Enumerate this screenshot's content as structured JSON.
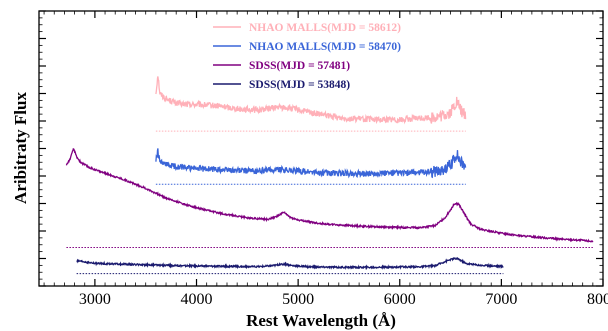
{
  "chart_data": {
    "type": "line",
    "title": "",
    "xlabel": "Rest Wavelength (Å)",
    "ylabel": "Aribitraty Flux",
    "xlim": [
      2450,
      8000
    ],
    "ylim": [
      0,
      1
    ],
    "x_ticks": [
      3000,
      4000,
      5000,
      6000,
      7000,
      8000
    ],
    "x_tick_labels": [
      "3000",
      "4000",
      "5000",
      "6000",
      "7000",
      "8000"
    ],
    "grid": false,
    "legend_position": "top-center",
    "series": [
      {
        "name": "NHAO MALLS(MJD = 58612)",
        "color": "#ffb0b8",
        "x_range": [
          3600,
          6650
        ],
        "baseline": 0.563,
        "points": [
          [
            3600,
            0.7
          ],
          [
            3620,
            0.77
          ],
          [
            3640,
            0.7
          ],
          [
            3700,
            0.68
          ],
          [
            3800,
            0.665
          ],
          [
            3900,
            0.66
          ],
          [
            4000,
            0.66
          ],
          [
            4200,
            0.655
          ],
          [
            4400,
            0.645
          ],
          [
            4600,
            0.64
          ],
          [
            4800,
            0.65
          ],
          [
            4900,
            0.648
          ],
          [
            5000,
            0.64
          ],
          [
            5200,
            0.625
          ],
          [
            5400,
            0.612
          ],
          [
            5600,
            0.608
          ],
          [
            5800,
            0.605
          ],
          [
            6000,
            0.605
          ],
          [
            6200,
            0.61
          ],
          [
            6400,
            0.615
          ],
          [
            6500,
            0.63
          ],
          [
            6560,
            0.67
          ],
          [
            6600,
            0.64
          ],
          [
            6650,
            0.62
          ]
        ]
      },
      {
        "name": "NHAO MALLS(MJD = 58470)",
        "color": "#3a65d8",
        "x_range": [
          3600,
          6650
        ],
        "baseline": 0.37,
        "points": [
          [
            3600,
            0.455
          ],
          [
            3620,
            0.49
          ],
          [
            3640,
            0.45
          ],
          [
            3700,
            0.44
          ],
          [
            3800,
            0.435
          ],
          [
            3900,
            0.43
          ],
          [
            4000,
            0.428
          ],
          [
            4200,
            0.424
          ],
          [
            4400,
            0.42
          ],
          [
            4600,
            0.418
          ],
          [
            4800,
            0.425
          ],
          [
            4900,
            0.422
          ],
          [
            5000,
            0.418
          ],
          [
            5200,
            0.412
          ],
          [
            5400,
            0.41
          ],
          [
            5600,
            0.408
          ],
          [
            5800,
            0.41
          ],
          [
            6000,
            0.41
          ],
          [
            6200,
            0.413
          ],
          [
            6400,
            0.42
          ],
          [
            6500,
            0.44
          ],
          [
            6560,
            0.48
          ],
          [
            6600,
            0.45
          ],
          [
            6650,
            0.44
          ]
        ]
      },
      {
        "name": "SDSS(MJD = 57481)",
        "color": "#800080",
        "x_range": [
          2720,
          7900
        ],
        "baseline": 0.14,
        "points": [
          [
            2720,
            0.44
          ],
          [
            2760,
            0.465
          ],
          [
            2790,
            0.5
          ],
          [
            2820,
            0.47
          ],
          [
            2860,
            0.45
          ],
          [
            2950,
            0.43
          ],
          [
            3100,
            0.41
          ],
          [
            3300,
            0.385
          ],
          [
            3500,
            0.355
          ],
          [
            3700,
            0.32
          ],
          [
            3900,
            0.295
          ],
          [
            4100,
            0.275
          ],
          [
            4300,
            0.26
          ],
          [
            4500,
            0.248
          ],
          [
            4700,
            0.242
          ],
          [
            4800,
            0.255
          ],
          [
            4860,
            0.268
          ],
          [
            4920,
            0.25
          ],
          [
            5000,
            0.24
          ],
          [
            5200,
            0.228
          ],
          [
            5400,
            0.222
          ],
          [
            5600,
            0.218
          ],
          [
            5800,
            0.215
          ],
          [
            6000,
            0.213
          ],
          [
            6200,
            0.212
          ],
          [
            6350,
            0.22
          ],
          [
            6450,
            0.25
          ],
          [
            6540,
            0.3
          ],
          [
            6580,
            0.298
          ],
          [
            6640,
            0.26
          ],
          [
            6700,
            0.225
          ],
          [
            6800,
            0.205
          ],
          [
            7000,
            0.192
          ],
          [
            7200,
            0.182
          ],
          [
            7400,
            0.176
          ],
          [
            7600,
            0.17
          ],
          [
            7800,
            0.166
          ],
          [
            7900,
            0.162
          ]
        ]
      },
      {
        "name": "SDSS(MJD = 53848)",
        "color": "#1a1a6e",
        "x_range": [
          2820,
          7020
        ],
        "baseline": 0.045,
        "points": [
          [
            2820,
            0.09
          ],
          [
            2850,
            0.09
          ],
          [
            3000,
            0.082
          ],
          [
            3200,
            0.08
          ],
          [
            3400,
            0.078
          ],
          [
            3600,
            0.076
          ],
          [
            3800,
            0.074
          ],
          [
            4000,
            0.073
          ],
          [
            4200,
            0.072
          ],
          [
            4400,
            0.071
          ],
          [
            4600,
            0.07
          ],
          [
            4750,
            0.074
          ],
          [
            4860,
            0.08
          ],
          [
            4950,
            0.074
          ],
          [
            5100,
            0.07
          ],
          [
            5400,
            0.068
          ],
          [
            5700,
            0.068
          ],
          [
            6000,
            0.069
          ],
          [
            6200,
            0.07
          ],
          [
            6350,
            0.074
          ],
          [
            6450,
            0.09
          ],
          [
            6530,
            0.1
          ],
          [
            6580,
            0.098
          ],
          [
            6650,
            0.082
          ],
          [
            6800,
            0.075
          ],
          [
            7000,
            0.072
          ],
          [
            7020,
            0.07
          ]
        ]
      }
    ]
  }
}
